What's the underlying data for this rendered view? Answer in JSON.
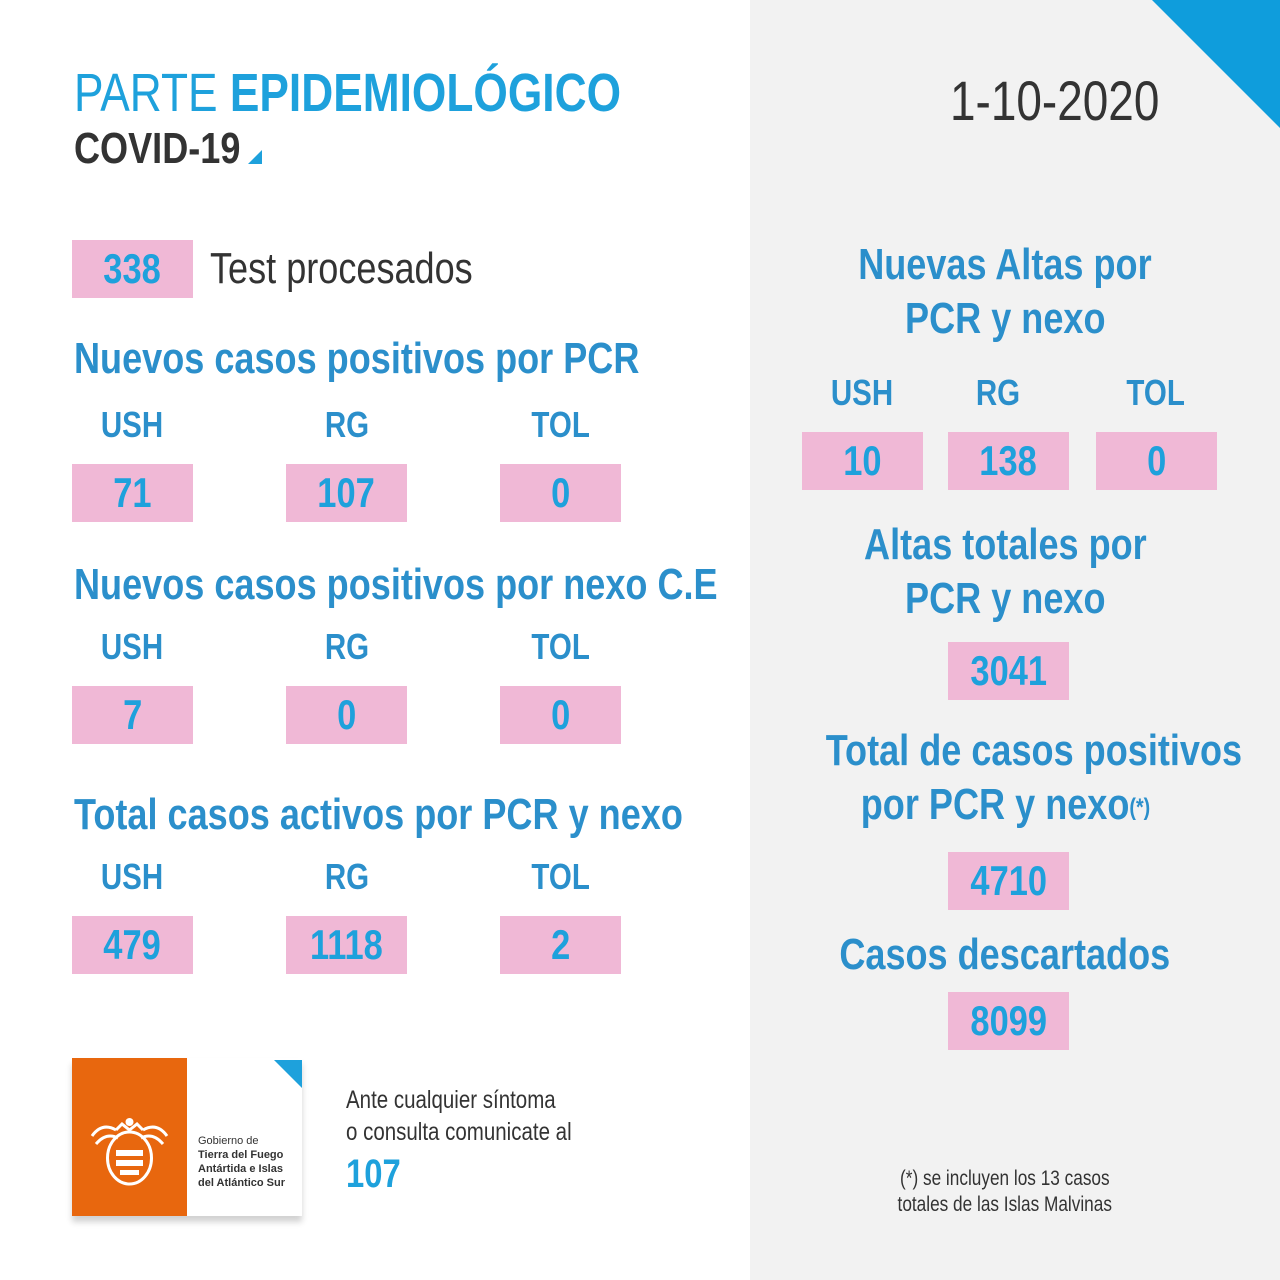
{
  "header": {
    "title_light": "PARTE ",
    "title_bold": "EPIDEMIOLÓGICO",
    "subtitle": "COVID-19",
    "date": "1-10-2020"
  },
  "tests": {
    "value": "338",
    "label": "Test procesados"
  },
  "left_sections": [
    {
      "title": "Nuevos casos positivos por PCR",
      "regions": [
        "USH",
        "RG",
        "TOL"
      ],
      "values": [
        "71",
        "107",
        "0"
      ]
    },
    {
      "title": "Nuevos casos positivos por nexo C.E",
      "regions": [
        "USH",
        "RG",
        "TOL"
      ],
      "values": [
        "7",
        "0",
        "0"
      ]
    },
    {
      "title": "Total casos activos por PCR y nexo",
      "regions": [
        "USH",
        "RG",
        "TOL"
      ],
      "values": [
        "479",
        "1118",
        "2"
      ]
    }
  ],
  "right": {
    "altas_nuevas": {
      "title_line1": "Nuevas Altas por",
      "title_line2": "PCR y nexo",
      "regions": [
        "USH",
        "RG",
        "TOL"
      ],
      "values": [
        "10",
        "138",
        "0"
      ]
    },
    "altas_totales": {
      "title_line1": "Altas totales por",
      "title_line2": "PCR y nexo",
      "value": "3041"
    },
    "total_positivos": {
      "title_line1": "Total de casos positivos",
      "title_line2": "por PCR y nexo",
      "mark": "(*)",
      "value": "4710"
    },
    "descartados": {
      "title": "Casos descartados",
      "value": "8099"
    },
    "footnote_line1": "(*) se incluyen los 13 casos",
    "footnote_line2": "totales de las Islas Malvinas"
  },
  "logo": {
    "line1": "Gobierno de",
    "line2": "Tierra del Fuego",
    "line3": "Antártida e Islas",
    "line4": "del Atlántico Sur"
  },
  "contact": {
    "line1": "Ante cualquier síntoma",
    "line2": "o consulta comunicate al",
    "number": "107"
  },
  "colors": {
    "accent": "#1ea1dc",
    "title_blue": "#2b8fcb",
    "pink": "#f0b8d6",
    "orange": "#e8670e",
    "dark": "#333333"
  }
}
